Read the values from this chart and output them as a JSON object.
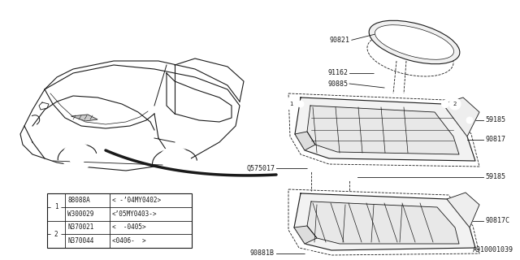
{
  "bg_color": "#ffffff",
  "dark": "#1a1a1a",
  "diagram_number": "A910001039",
  "table_data": [
    [
      "88088A",
      "< -’04MY0402>"
    ],
    [
      "W300029",
      "<’05MY0403->"
    ],
    [
      "N370021",
      "<  -0405>"
    ],
    [
      "N370044",
      "<0406-  >"
    ]
  ]
}
